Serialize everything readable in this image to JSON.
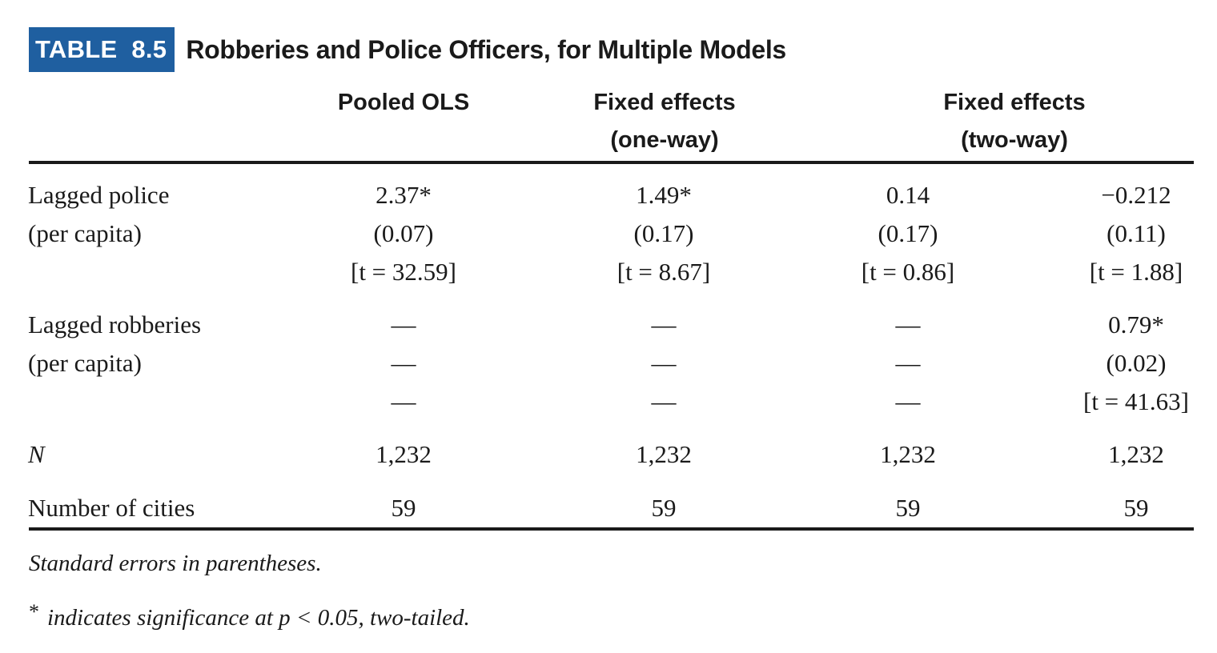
{
  "table_label": "TABLE  8.5",
  "table_title": "Robberies and Police Officers, for Multiple Models",
  "headers": {
    "pooled": "Pooled OLS",
    "fe_oneway_line1": "Fixed effects",
    "fe_oneway_line2": "(one-way)",
    "fe_twoway_line1": "Fixed effects",
    "fe_twoway_line2": "(two-way)"
  },
  "rows": {
    "lagged_police": {
      "label1": "Lagged police",
      "label2": "(per capita)",
      "col1": [
        "2.37*",
        "(0.07)",
        "[t = 32.59]"
      ],
      "col2": [
        "1.49*",
        "(0.17)",
        "[t = 8.67]"
      ],
      "col3": [
        "0.14",
        "(0.17)",
        "[t = 0.86]"
      ],
      "col4": [
        "−0.212",
        "(0.11)",
        "[t = 1.88]"
      ]
    },
    "lagged_robberies": {
      "label1": "Lagged robberies",
      "label2": "(per capita)",
      "col1": [
        "—",
        "—",
        "—"
      ],
      "col2": [
        "—",
        "—",
        "—"
      ],
      "col3": [
        "—",
        "—",
        "—"
      ],
      "col4": [
        "0.79*",
        "(0.02)",
        "[t = 41.63]"
      ]
    },
    "n": {
      "label": "N",
      "values": [
        "1,232",
        "1,232",
        "1,232",
        "1,232"
      ]
    },
    "cities": {
      "label": "Number of cities",
      "values": [
        "59",
        "59",
        "59",
        "59"
      ]
    }
  },
  "notes": {
    "note1": "Standard errors in parentheses.",
    "note2_star": "*",
    "note2_text": "indicates significance at p < 0.05, two-tailed."
  },
  "colors": {
    "label_background": "#1f5fa0",
    "label_text": "#ffffff",
    "text": "#1a1a1a"
  }
}
